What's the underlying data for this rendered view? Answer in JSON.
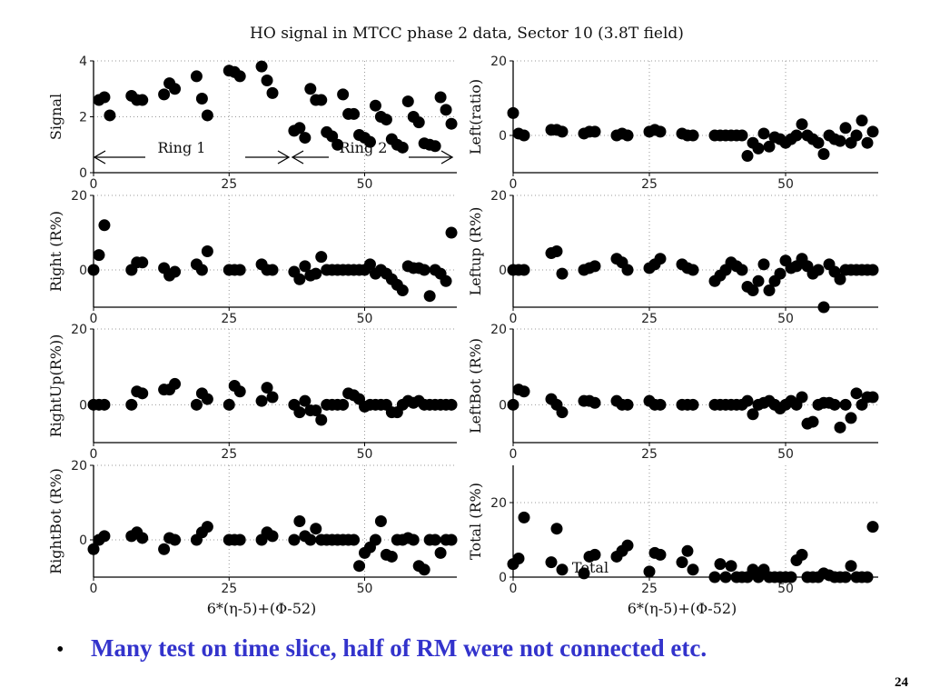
{
  "title": "HO signal in MTCC phase 2 data, Sector 10 (3.8T field)",
  "bullet": "Many test on time slice, half of RM were not connected etc.",
  "page_number": 24,
  "chart_data": [
    {
      "type": "scatter",
      "y_label": "Signal",
      "color": "#000000",
      "grid": true,
      "xlim": [
        0,
        67
      ],
      "xticks": [
        0,
        25,
        50
      ],
      "ylim": [
        0,
        4
      ],
      "yticks": [
        0,
        2,
        4
      ],
      "annotations": [
        "Ring 1",
        "Ring 2"
      ],
      "x": [
        1,
        2,
        3,
        7,
        8,
        9,
        13,
        14,
        15,
        19,
        20,
        21,
        25,
        26,
        27,
        31,
        32,
        33,
        37,
        38,
        39,
        40,
        41,
        42,
        43,
        44,
        45,
        46,
        47,
        48,
        49,
        50,
        51,
        52,
        53,
        54,
        55,
        56,
        57,
        58,
        59,
        60,
        61,
        62,
        63,
        64,
        65,
        66
      ],
      "values": [
        2.6,
        2.7,
        2.05,
        2.75,
        2.6,
        2.6,
        2.8,
        3.2,
        3.0,
        3.45,
        2.65,
        2.05,
        3.65,
        3.6,
        3.45,
        3.8,
        3.3,
        2.85,
        1.5,
        1.6,
        1.25,
        3.0,
        2.6,
        2.6,
        1.45,
        1.3,
        1.0,
        2.8,
        2.1,
        2.1,
        1.35,
        1.25,
        1.1,
        2.4,
        2.0,
        1.9,
        1.2,
        1.0,
        0.9,
        2.55,
        2.0,
        1.8,
        1.05,
        1.0,
        0.95,
        2.7,
        2.25,
        1.75
      ]
    },
    {
      "type": "scatter",
      "y_label": "Left(ratio)",
      "color": "#000000",
      "grid": true,
      "xlim": [
        0,
        67
      ],
      "xticks": [
        0,
        25,
        50
      ],
      "ylim": [
        -10,
        20
      ],
      "yticks": [
        0,
        20
      ],
      "x": [
        0,
        1,
        2,
        7,
        8,
        9,
        13,
        14,
        15,
        19,
        20,
        21,
        25,
        26,
        27,
        31,
        32,
        33,
        37,
        38,
        39,
        40,
        41,
        42,
        43,
        44,
        45,
        46,
        47,
        48,
        49,
        50,
        51,
        52,
        53,
        54,
        55,
        56,
        57,
        58,
        59,
        60,
        61,
        62,
        63,
        64,
        65,
        66
      ],
      "values": [
        6,
        0.5,
        0,
        1.5,
        1.5,
        1,
        0.5,
        1,
        1,
        0,
        0.5,
        0,
        1,
        1.5,
        1,
        0.5,
        0,
        0,
        0,
        0,
        0,
        0,
        0,
        0,
        -5.5,
        -2,
        -3.5,
        0.5,
        -3,
        -0.5,
        -1,
        -2,
        -1,
        0,
        3,
        0,
        -1,
        -2,
        -5,
        0,
        -1,
        -1.5,
        2,
        -2,
        0,
        4,
        -2,
        1
      ]
    },
    {
      "type": "scatter",
      "y_label": "Right (R%)",
      "color": "#000000",
      "grid": true,
      "xlim": [
        0,
        67
      ],
      "xticks": [
        0,
        25,
        50
      ],
      "ylim": [
        -10,
        20
      ],
      "yticks": [
        0,
        20
      ],
      "x": [
        0,
        1,
        2,
        7,
        8,
        9,
        13,
        14,
        15,
        19,
        20,
        21,
        25,
        26,
        27,
        31,
        32,
        33,
        37,
        38,
        39,
        40,
        41,
        42,
        43,
        44,
        45,
        46,
        47,
        48,
        49,
        50,
        51,
        52,
        53,
        54,
        55,
        56,
        57,
        58,
        59,
        60,
        61,
        62,
        63,
        64,
        65,
        66
      ],
      "values": [
        0,
        4,
        12,
        0,
        2,
        2,
        0.5,
        -1.5,
        -0.5,
        1.5,
        0,
        5,
        0,
        0,
        0,
        1.5,
        0,
        0,
        -0.5,
        -2.5,
        1,
        -1.5,
        -1,
        3.5,
        0,
        0,
        0,
        0,
        0,
        0,
        0,
        0,
        1.5,
        -1,
        0,
        -1,
        -2.5,
        -4,
        -5.5,
        1,
        0.5,
        0.5,
        0,
        -7,
        0,
        -1,
        -3,
        10
      ]
    },
    {
      "type": "scatter",
      "y_label": "Leftup (R%)",
      "color": "#000000",
      "grid": true,
      "xlim": [
        0,
        67
      ],
      "xticks": [
        0,
        25,
        50
      ],
      "ylim": [
        -10,
        20
      ],
      "yticks": [
        0,
        20
      ],
      "x": [
        0,
        1,
        2,
        7,
        8,
        9,
        13,
        14,
        15,
        19,
        20,
        21,
        25,
        26,
        27,
        31,
        32,
        33,
        37,
        38,
        39,
        40,
        41,
        42,
        43,
        44,
        45,
        46,
        47,
        48,
        49,
        50,
        51,
        52,
        53,
        54,
        55,
        56,
        57,
        58,
        59,
        60,
        61,
        62,
        63,
        64,
        65,
        66
      ],
      "values": [
        0,
        0,
        0,
        4.5,
        5,
        -1,
        0,
        0.5,
        1,
        3,
        2,
        0,
        0.5,
        1.5,
        3,
        1.5,
        0.5,
        0,
        -3,
        -1.5,
        0,
        2,
        1,
        0,
        -4.5,
        -5.5,
        -3,
        1.5,
        -5.5,
        -3,
        -1,
        2.5,
        0.5,
        1,
        3,
        1,
        -1,
        0,
        -10,
        1.5,
        -0.5,
        -2.5,
        0,
        0,
        0,
        0,
        0,
        0
      ]
    },
    {
      "type": "scatter",
      "y_label": "RightUp(R%))",
      "color": "#000000",
      "grid": true,
      "xlim": [
        0,
        67
      ],
      "xticks": [
        0,
        25,
        50
      ],
      "ylim": [
        -10,
        20
      ],
      "yticks": [
        0,
        20
      ],
      "x": [
        0,
        1,
        2,
        7,
        8,
        9,
        13,
        14,
        15,
        19,
        20,
        21,
        25,
        26,
        27,
        31,
        32,
        33,
        37,
        38,
        39,
        40,
        41,
        42,
        43,
        44,
        45,
        46,
        47,
        48,
        49,
        50,
        51,
        52,
        53,
        54,
        55,
        56,
        57,
        58,
        59,
        60,
        61,
        62,
        63,
        64,
        65,
        66
      ],
      "values": [
        0,
        0,
        0,
        0,
        3.5,
        3,
        4,
        4,
        5.5,
        0,
        3,
        1.5,
        0,
        5,
        3.5,
        1,
        4.5,
        2,
        0,
        -2,
        1,
        -1.5,
        -1.5,
        -4,
        0,
        0,
        0,
        0,
        3,
        2.5,
        1.5,
        -0.5,
        0,
        0,
        0,
        0,
        -2,
        -2,
        0,
        1,
        0.5,
        1,
        0,
        0,
        0,
        0,
        0,
        0
      ]
    },
    {
      "type": "scatter",
      "y_label": "LeftBot (R%)",
      "color": "#000000",
      "grid": true,
      "xlim": [
        0,
        67
      ],
      "xticks": [
        0,
        25,
        50
      ],
      "ylim": [
        -10,
        20
      ],
      "yticks": [
        0,
        20
      ],
      "x": [
        0,
        1,
        2,
        7,
        8,
        9,
        13,
        14,
        15,
        19,
        20,
        21,
        25,
        26,
        27,
        31,
        32,
        33,
        37,
        38,
        39,
        40,
        41,
        42,
        43,
        44,
        45,
        46,
        47,
        48,
        49,
        50,
        51,
        52,
        53,
        54,
        55,
        56,
        57,
        58,
        59,
        60,
        61,
        62,
        63,
        64,
        65,
        66
      ],
      "values": [
        0,
        4,
        3.5,
        1.5,
        0,
        -2,
        1,
        1,
        0.5,
        1,
        0,
        0,
        1,
        0,
        0,
        0,
        0,
        0,
        0,
        0,
        0,
        0,
        0,
        0,
        1,
        -2.5,
        0,
        0.5,
        1,
        0,
        -1,
        0,
        1,
        0,
        2,
        -5,
        -4.5,
        0,
        0.5,
        0.5,
        0,
        -6,
        0,
        -3.5,
        3,
        0,
        2,
        2
      ]
    },
    {
      "type": "scatter",
      "y_label": "RightBot (R%)",
      "x_label": "6*(η-5)+(Φ-52)",
      "color": "#000000",
      "grid": true,
      "xlim": [
        0,
        67
      ],
      "xticks": [
        0,
        25,
        50
      ],
      "ylim": [
        -10,
        20
      ],
      "yticks": [
        0,
        20
      ],
      "x": [
        0,
        1,
        2,
        7,
        8,
        9,
        13,
        14,
        15,
        19,
        20,
        21,
        25,
        26,
        27,
        31,
        32,
        33,
        37,
        38,
        39,
        40,
        41,
        42,
        43,
        44,
        45,
        46,
        47,
        48,
        49,
        50,
        51,
        52,
        53,
        54,
        55,
        56,
        57,
        58,
        59,
        60,
        61,
        62,
        63,
        64,
        65,
        66
      ],
      "values": [
        -2.5,
        0,
        1,
        1,
        2,
        0.5,
        -2.5,
        0.5,
        0,
        0,
        2,
        3.5,
        0,
        0,
        0,
        0,
        2,
        1,
        0,
        5,
        1,
        0,
        3,
        0,
        0,
        0,
        0,
        0,
        0,
        0,
        -7,
        -3.5,
        -2,
        0,
        5,
        -4,
        -4.5,
        0,
        0,
        0.5,
        0,
        -7,
        -8,
        0,
        0,
        -3.5,
        0,
        0
      ]
    },
    {
      "type": "scatter",
      "y_label": "Total (R%)",
      "x_label": "6*(η-5)+(Φ-52)",
      "color": "#000000",
      "grid": true,
      "xlim": [
        0,
        67
      ],
      "xticks": [
        0,
        25,
        50
      ],
      "ylim": [
        0,
        30
      ],
      "yticks": [
        0,
        20
      ],
      "annotations": [
        "Total"
      ],
      "x": [
        0,
        1,
        2,
        7,
        8,
        9,
        13,
        14,
        15,
        19,
        20,
        21,
        25,
        26,
        27,
        31,
        32,
        33,
        37,
        38,
        39,
        40,
        41,
        42,
        43,
        44,
        45,
        46,
        47,
        48,
        49,
        50,
        51,
        52,
        53,
        54,
        55,
        56,
        57,
        58,
        59,
        60,
        61,
        62,
        63,
        64,
        65,
        66
      ],
      "values": [
        3.5,
        5,
        16,
        4,
        13,
        2,
        1,
        5.5,
        6,
        5.5,
        7,
        8.5,
        1.5,
        6.5,
        6,
        4,
        7,
        2,
        0,
        3.5,
        0,
        3,
        0,
        0,
        0,
        2,
        0,
        2,
        0,
        0,
        0,
        0,
        0,
        4.5,
        6,
        0,
        0,
        0,
        1,
        0.5,
        0,
        0,
        0,
        3,
        0,
        0,
        0,
        13.5
      ]
    }
  ]
}
